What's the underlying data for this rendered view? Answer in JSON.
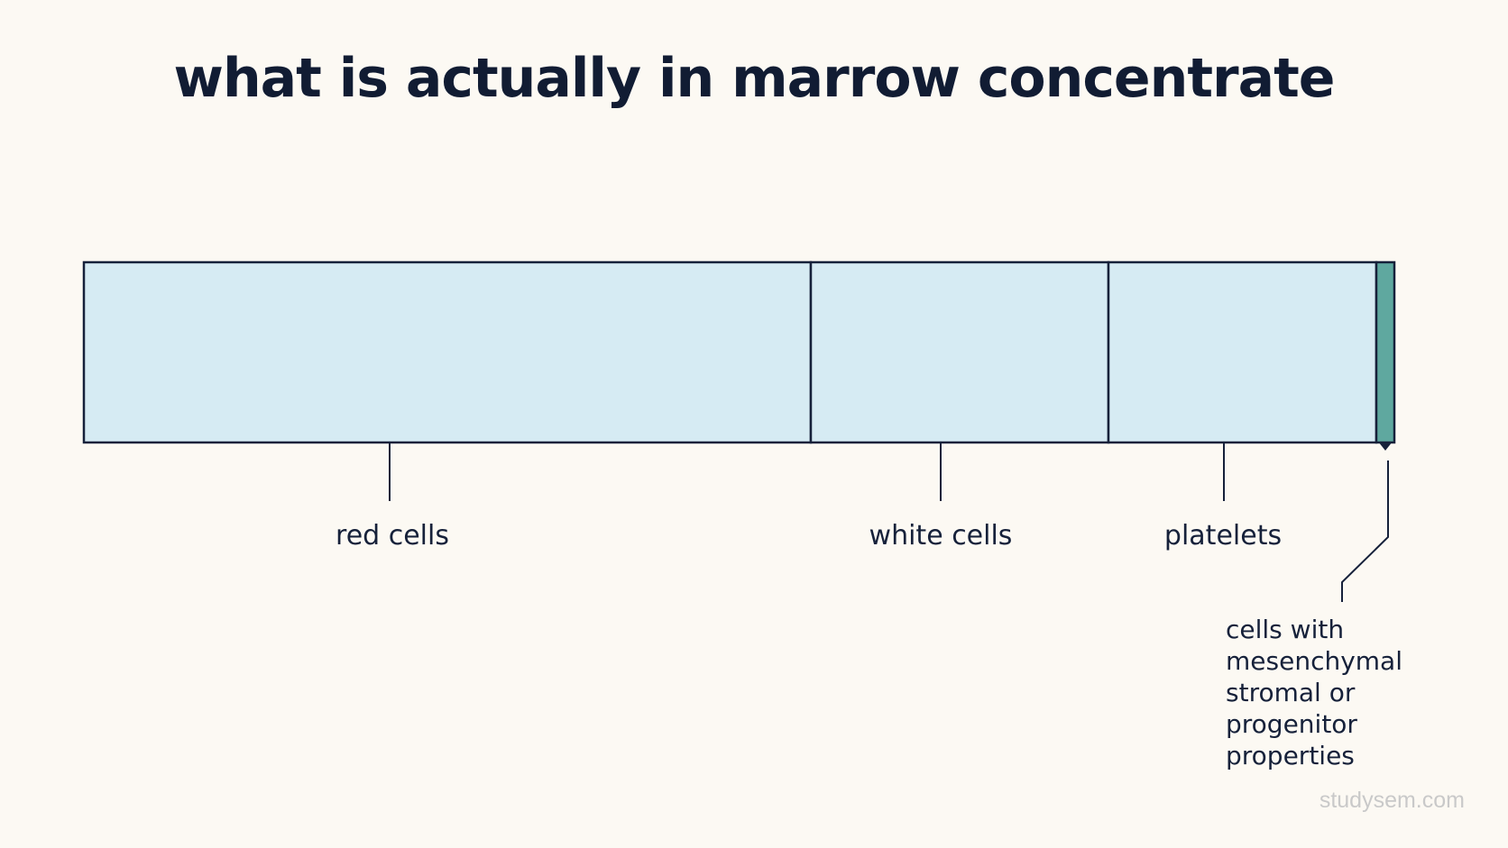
{
  "title": "what is actually in marrow concentrate",
  "components": [
    {
      "label": "red cells",
      "fill": "#d6ebf3"
    },
    {
      "label": "white cells",
      "fill": "#d6ebf3"
    },
    {
      "label": "platelets",
      "fill": "#d6ebf3"
    },
    {
      "label": "cells with mesenchymal stromal or progenitor properties",
      "fill": "#5fa89f"
    }
  ],
  "colors": {
    "background": "#fcf9f3",
    "outline": "#16213a",
    "light_segment": "#d6ebf3",
    "highlight_segment": "#5fa89f"
  },
  "watermark": "studysem.com"
}
